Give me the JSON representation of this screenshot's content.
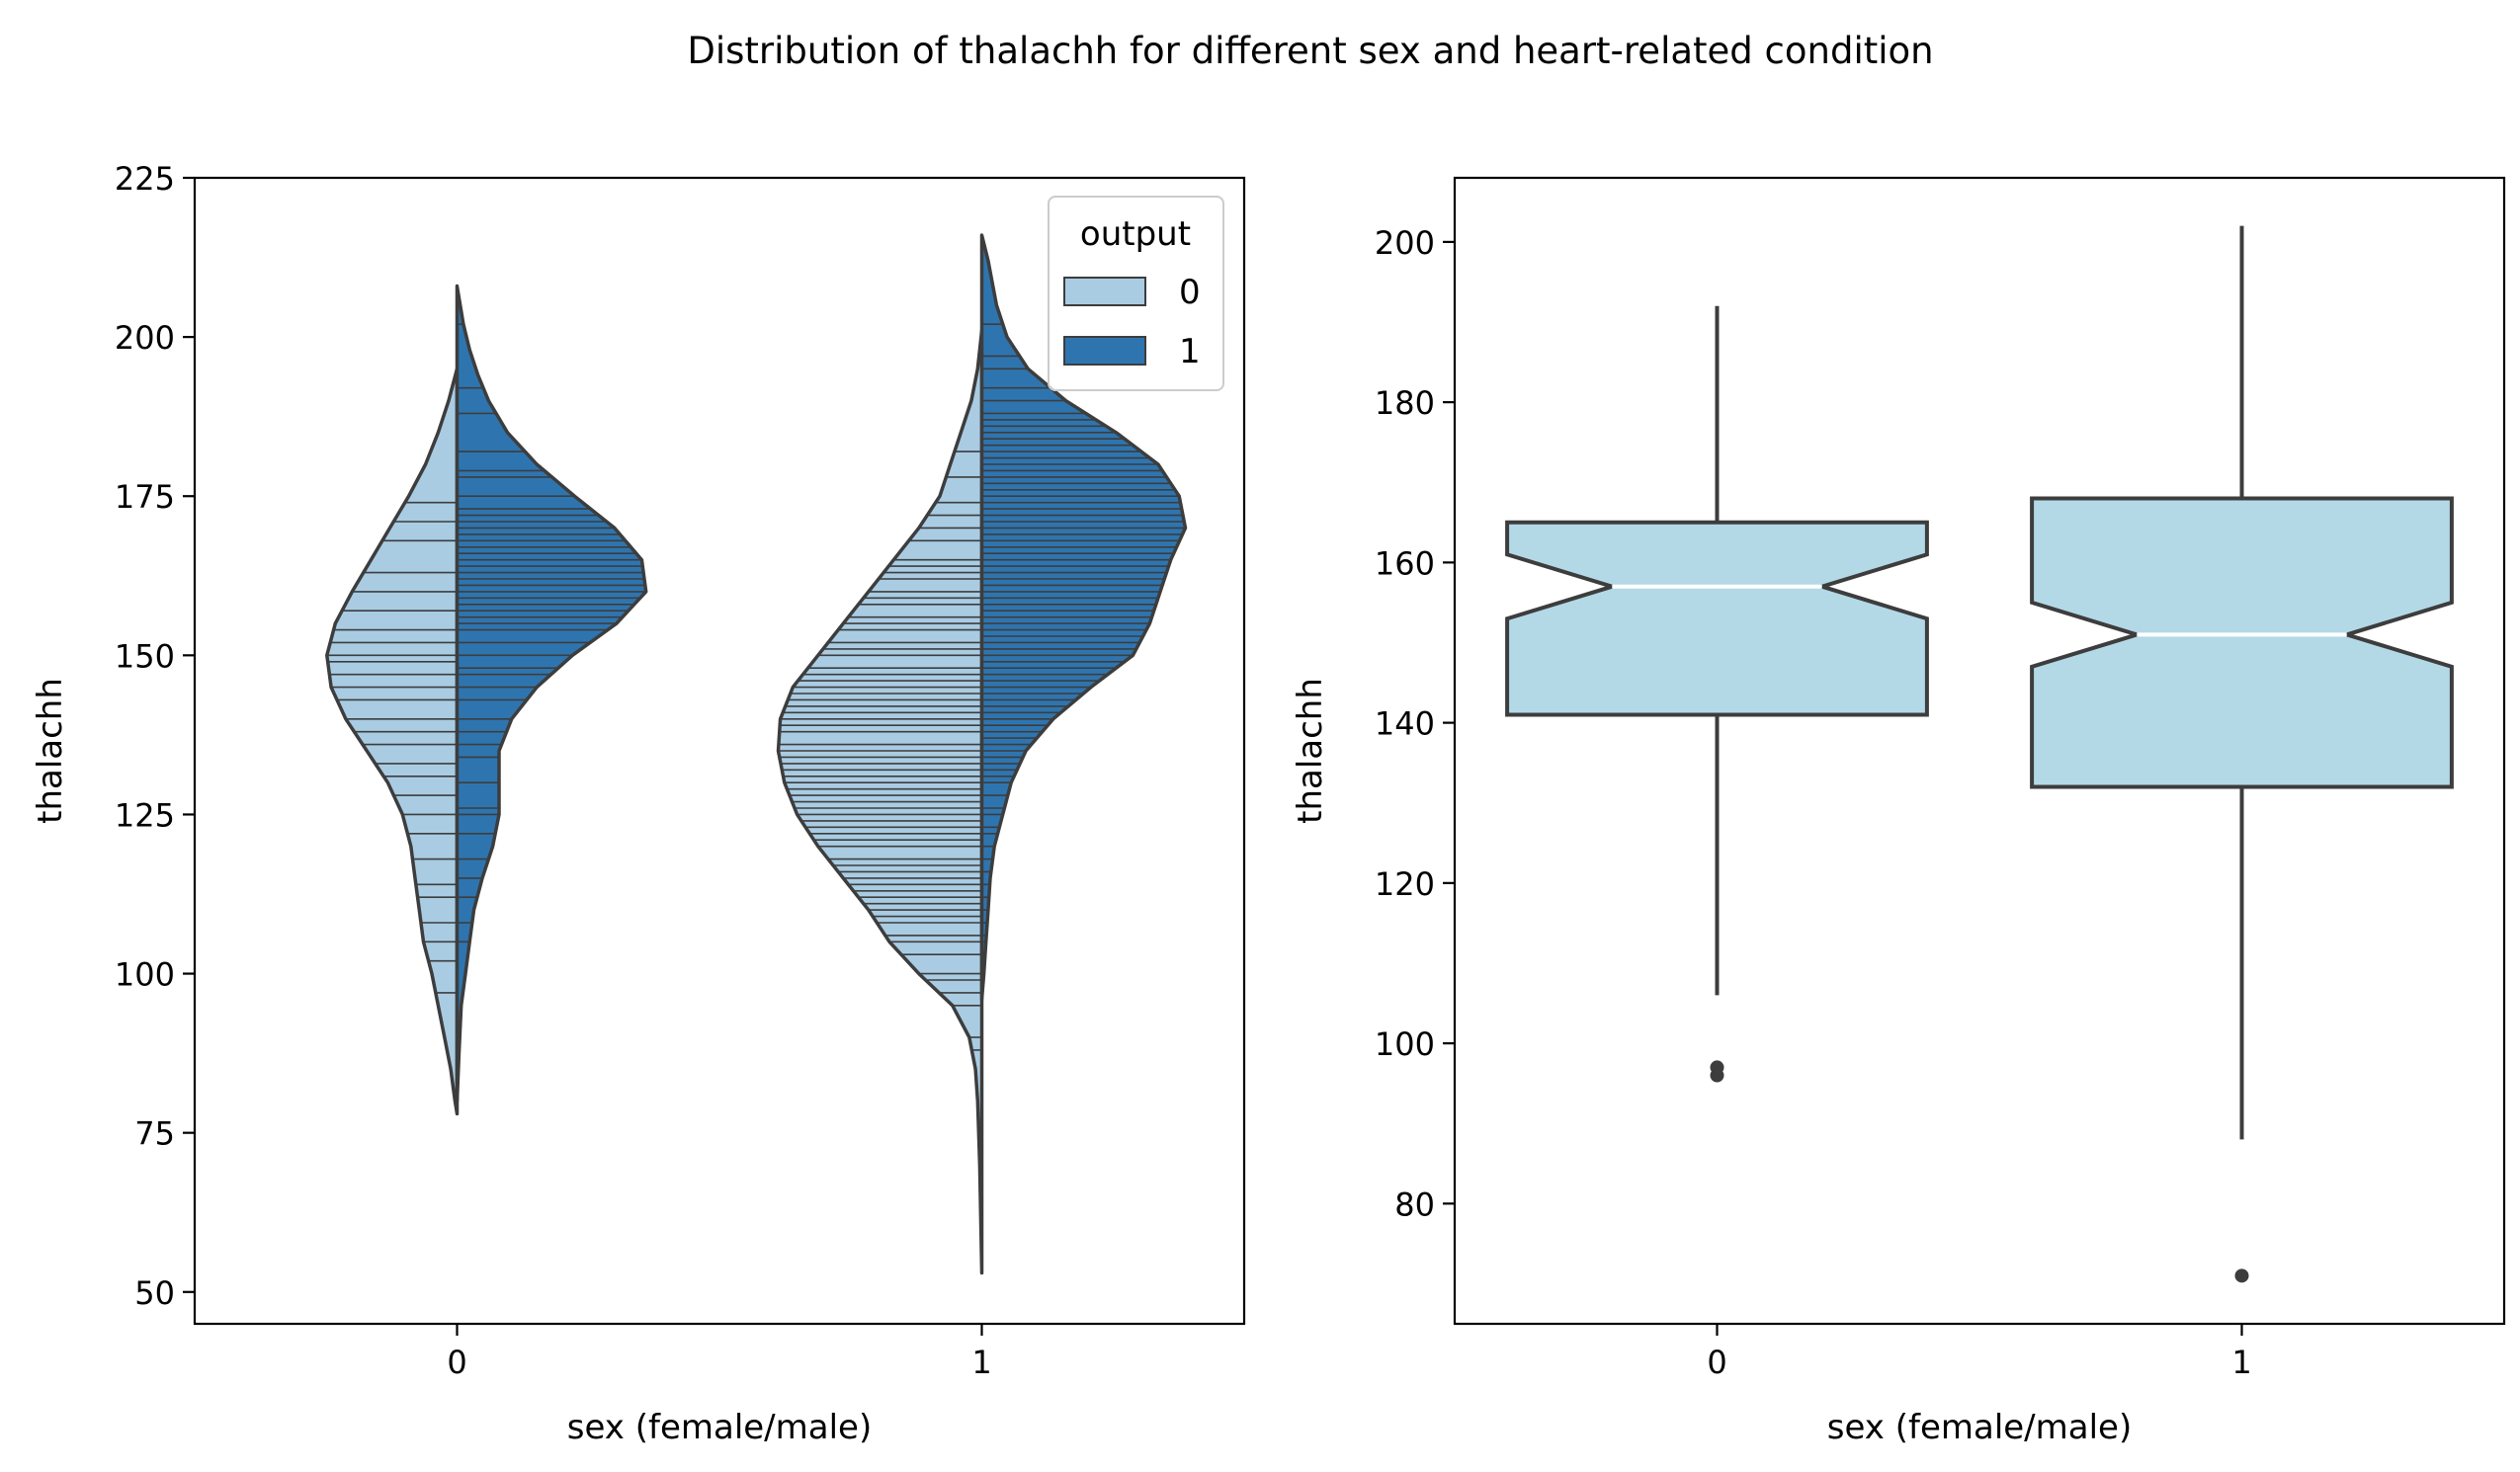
{
  "suptitle": "Distribution of thalachh for different sex and heart-related condition",
  "colors": {
    "output_0": "#a9cce3",
    "output_1": "#2e75b0",
    "box_fill": "#b3d9e7",
    "edge": "#3d3d3d",
    "median_line": "#ffffff"
  },
  "chart_data": [
    {
      "type": "violin",
      "split": true,
      "inner": "stick",
      "xlabel": "sex (female/male)",
      "ylabel": "thalachh",
      "categories": [
        "0",
        "1"
      ],
      "ylim": [
        45,
        225
      ],
      "yticks": [
        50,
        75,
        100,
        125,
        150,
        175,
        200,
        225
      ],
      "grid": false,
      "legend": {
        "title": "output",
        "placement": "upper right",
        "entries": [
          "0",
          "1"
        ]
      },
      "series": [
        {
          "name": "0",
          "side": "left",
          "violins": [
            {
              "category": "0",
              "profile": [
                [
                  195,
                  0
                ],
                [
                  190,
                  0.04
                ],
                [
                  185,
                  0.09
                ],
                [
                  180,
                  0.15
                ],
                [
                  175,
                  0.23
                ],
                [
                  170,
                  0.32
                ],
                [
                  165,
                  0.41
                ],
                [
                  160,
                  0.5
                ],
                [
                  155,
                  0.58
                ],
                [
                  150,
                  0.62
                ],
                [
                  145,
                  0.6
                ],
                [
                  140,
                  0.53
                ],
                [
                  135,
                  0.43
                ],
                [
                  130,
                  0.33
                ],
                [
                  125,
                  0.26
                ],
                [
                  120,
                  0.22
                ],
                [
                  115,
                  0.2
                ],
                [
                  110,
                  0.18
                ],
                [
                  105,
                  0.16
                ],
                [
                  100,
                  0.12
                ],
                [
                  95,
                  0.09
                ],
                [
                  90,
                  0.06
                ],
                [
                  85,
                  0.03
                ],
                [
                  80,
                  0.01
                ],
                [
                  78,
                  0
                ]
              ],
              "sticks": [
                174,
                171,
                168,
                163,
                160,
                157,
                154,
                152,
                150,
                149,
                147,
                145,
                143,
                140,
                138,
                136,
                133,
                131,
                128,
                125,
                122,
                118,
                114,
                112,
                108,
                105,
                102,
                97
              ]
            },
            {
              "category": "1",
              "profile": [
                [
                  201,
                  0
                ],
                [
                  195,
                  0.02
                ],
                [
                  190,
                  0.05
                ],
                [
                  185,
                  0.1
                ],
                [
                  180,
                  0.15
                ],
                [
                  175,
                  0.2
                ],
                [
                  170,
                  0.3
                ],
                [
                  165,
                  0.42
                ],
                [
                  160,
                  0.54
                ],
                [
                  155,
                  0.66
                ],
                [
                  150,
                  0.78
                ],
                [
                  145,
                  0.9
                ],
                [
                  140,
                  0.96
                ],
                [
                  135,
                  0.97
                ],
                [
                  130,
                  0.94
                ],
                [
                  125,
                  0.88
                ],
                [
                  120,
                  0.78
                ],
                [
                  115,
                  0.66
                ],
                [
                  110,
                  0.54
                ],
                [
                  105,
                  0.44
                ],
                [
                  100,
                  0.3
                ],
                [
                  95,
                  0.14
                ],
                [
                  90,
                  0.06
                ],
                [
                  85,
                  0.03
                ],
                [
                  80,
                  0.02
                ],
                [
                  70,
                  0.01
                ],
                [
                  53,
                  0
                ]
              ],
              "sticks": [
                182,
                178,
                174,
                172,
                170,
                168,
                165,
                164,
                163,
                162,
                160,
                159,
                158,
                156,
                155,
                154,
                152,
                151,
                150,
                148,
                147,
                146,
                145,
                144,
                143,
                142,
                141,
                140,
                139,
                138,
                136,
                135,
                134,
                133,
                132,
                131,
                130,
                129,
                128,
                127,
                126,
                125,
                124,
                123,
                122,
                121,
                120,
                118,
                117,
                116,
                115,
                114,
                113,
                112,
                111,
                110,
                109,
                108,
                106,
                105,
                103,
                100,
                99,
                97,
                95,
                90,
                88
              ]
            }
          ]
        },
        {
          "name": "1",
          "side": "right",
          "violins": [
            {
              "category": "0",
              "profile": [
                [
                  208,
                  0
                ],
                [
                  202,
                  0.03
                ],
                [
                  198,
                  0.06
                ],
                [
                  194,
                  0.1
                ],
                [
                  190,
                  0.15
                ],
                [
                  185,
                  0.24
                ],
                [
                  180,
                  0.38
                ],
                [
                  175,
                  0.56
                ],
                [
                  170,
                  0.75
                ],
                [
                  165,
                  0.88
                ],
                [
                  160,
                  0.9
                ],
                [
                  155,
                  0.76
                ],
                [
                  150,
                  0.55
                ],
                [
                  145,
                  0.38
                ],
                [
                  140,
                  0.26
                ],
                [
                  135,
                  0.2
                ],
                [
                  130,
                  0.2
                ],
                [
                  125,
                  0.2
                ],
                [
                  120,
                  0.17
                ],
                [
                  115,
                  0.12
                ],
                [
                  110,
                  0.08
                ],
                [
                  105,
                  0.06
                ],
                [
                  100,
                  0.04
                ],
                [
                  95,
                  0.02
                ],
                [
                  88,
                  0.01
                ],
                [
                  80,
                  0
                ]
              ],
              "sticks": [
                202,
                192,
                188,
                182,
                179,
                178,
                175,
                173,
                172,
                171,
                170,
                169,
                168,
                167,
                166,
                165,
                164,
                163,
                162,
                161,
                160,
                159,
                158,
                157,
                156,
                155,
                154,
                152,
                150,
                148,
                147,
                145,
                143,
                140,
                138,
                136,
                134,
                130,
                126,
                125,
                122,
                118,
                115,
                112,
                108,
                105
              ]
            },
            {
              "category": "1",
              "profile": [
                [
                  216,
                  0
                ],
                [
                  212,
                  0.03
                ],
                [
                  205,
                  0.07
                ],
                [
                  200,
                  0.12
                ],
                [
                  195,
                  0.22
                ],
                [
                  190,
                  0.4
                ],
                [
                  185,
                  0.64
                ],
                [
                  180,
                  0.84
                ],
                [
                  175,
                  0.94
                ],
                [
                  170,
                  0.97
                ],
                [
                  165,
                  0.9
                ],
                [
                  160,
                  0.85
                ],
                [
                  155,
                  0.8
                ],
                [
                  150,
                  0.72
                ],
                [
                  145,
                  0.52
                ],
                [
                  140,
                  0.34
                ],
                [
                  135,
                  0.21
                ],
                [
                  130,
                  0.14
                ],
                [
                  125,
                  0.1
                ],
                [
                  120,
                  0.06
                ],
                [
                  115,
                  0.04
                ],
                [
                  110,
                  0.03
                ],
                [
                  105,
                  0.02
                ],
                [
                  100,
                  0.01
                ],
                [
                  96,
                  0
                ]
              ],
              "sticks": [
                202,
                197,
                195,
                192,
                190,
                188,
                187,
                186,
                185,
                184,
                183,
                182,
                181,
                180,
                179,
                178,
                177,
                176,
                175,
                174,
                173,
                172,
                171,
                170,
                169,
                168,
                167,
                166,
                165,
                164,
                163,
                162,
                161,
                160,
                159,
                158,
                157,
                156,
                155,
                154,
                153,
                152,
                151,
                150,
                149,
                148,
                147,
                146,
                145,
                144,
                143,
                142,
                141,
                140,
                139,
                138,
                137,
                136,
                135,
                134,
                133,
                132,
                131,
                130,
                128,
                126,
                125,
                123,
                122,
                120,
                118,
                116,
                114,
                112,
                110,
                108,
                106,
                105,
                103,
                100
              ]
            }
          ]
        }
      ]
    },
    {
      "type": "box",
      "notch": true,
      "xlabel": "sex (female/male)",
      "ylabel": "thalachh",
      "categories": [
        "0",
        "1"
      ],
      "ylim": [
        65,
        208
      ],
      "yticks": [
        80,
        100,
        120,
        140,
        160,
        180,
        200
      ],
      "grid": false,
      "boxes": [
        {
          "category": "0",
          "whisker_low": 106,
          "q1": 141,
          "median": 157,
          "q3": 165,
          "whisker_high": 192,
          "notch_low": 153,
          "notch_high": 161,
          "outliers": [
            96,
            97
          ]
        },
        {
          "category": "1",
          "whisker_low": 88,
          "q1": 132,
          "median": 151,
          "q3": 168,
          "whisker_high": 202,
          "notch_low": 147,
          "notch_high": 155,
          "outliers": [
            71
          ]
        }
      ]
    }
  ]
}
